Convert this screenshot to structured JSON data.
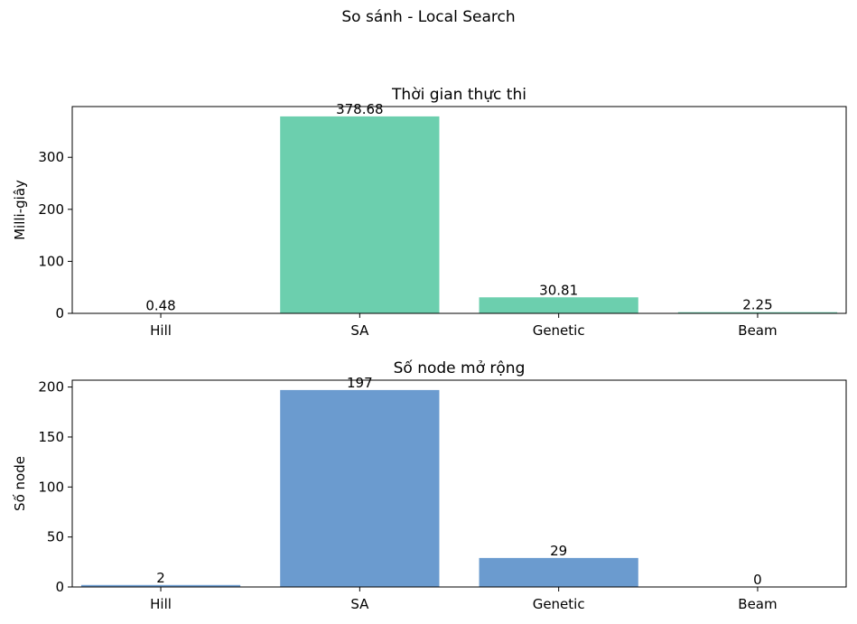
{
  "figure": {
    "title": "So sánh - Local Search"
  },
  "chart_data": [
    {
      "type": "bar",
      "title": "Thời gian thực thi",
      "xlabel": "",
      "ylabel": "Milli-giây",
      "categories": [
        "Hill",
        "SA",
        "Genetic",
        "Beam"
      ],
      "values": [
        0.48,
        378.68,
        30.81,
        2.25
      ],
      "value_labels": [
        "0.48",
        "378.68",
        "30.81",
        "2.25"
      ],
      "ylim": [
        0,
        397.6
      ],
      "yticks": [
        0,
        100,
        200,
        300
      ],
      "ytick_labels": [
        "0",
        "100",
        "200",
        "300"
      ],
      "color": "#6ccfae"
    },
    {
      "type": "bar",
      "title": "Số node mở rộng",
      "xlabel": "",
      "ylabel": "Số node",
      "categories": [
        "Hill",
        "SA",
        "Genetic",
        "Beam"
      ],
      "values": [
        2,
        197,
        29,
        0
      ],
      "value_labels": [
        "2",
        "197",
        "29",
        "0"
      ],
      "ylim": [
        0,
        206.85
      ],
      "yticks": [
        0,
        50,
        100,
        150,
        200
      ],
      "ytick_labels": [
        "0",
        "50",
        "100",
        "150",
        "200"
      ],
      "color": "#6b9bcf"
    }
  ]
}
